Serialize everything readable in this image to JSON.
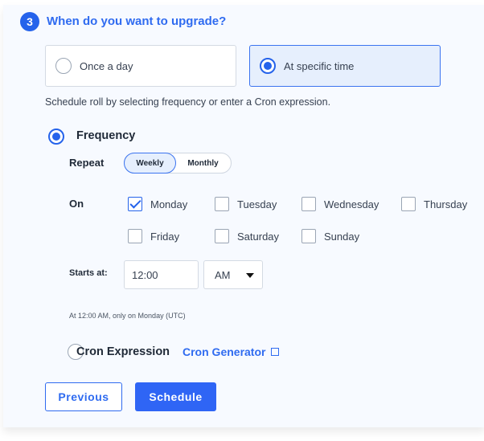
{
  "step": {
    "number": "3",
    "title": "When do you want to upgrade?"
  },
  "options": [
    {
      "label": "Once a day",
      "selected": false
    },
    {
      "label": "At specific time",
      "selected": true
    }
  ],
  "description": "Schedule roll by selecting frequency or enter a Cron expression.",
  "frequency": {
    "label": "Frequency",
    "selected": true,
    "repeat_label": "Repeat",
    "repeat_options": [
      "Weekly",
      "Monthly"
    ],
    "repeat_selected": "Weekly",
    "on_label": "On",
    "days": [
      {
        "label": "Monday",
        "checked": true
      },
      {
        "label": "Tuesday",
        "checked": false
      },
      {
        "label": "Wednesday",
        "checked": false
      },
      {
        "label": "Thursday",
        "checked": false
      },
      {
        "label": "Friday",
        "checked": false
      },
      {
        "label": "Saturday",
        "checked": false
      },
      {
        "label": "Sunday",
        "checked": false
      }
    ],
    "starts_label": "Starts at:",
    "time": "12:00",
    "ampm": "AM",
    "summary": "At 12:00 AM, only on Monday (UTC)"
  },
  "cron": {
    "label": "Cron Expression",
    "selected": false,
    "link": "Cron Generator"
  },
  "buttons": {
    "previous": "Previous",
    "schedule": "Schedule"
  },
  "colors": {
    "accent": "#2563eb",
    "panel": "#f7faff"
  }
}
